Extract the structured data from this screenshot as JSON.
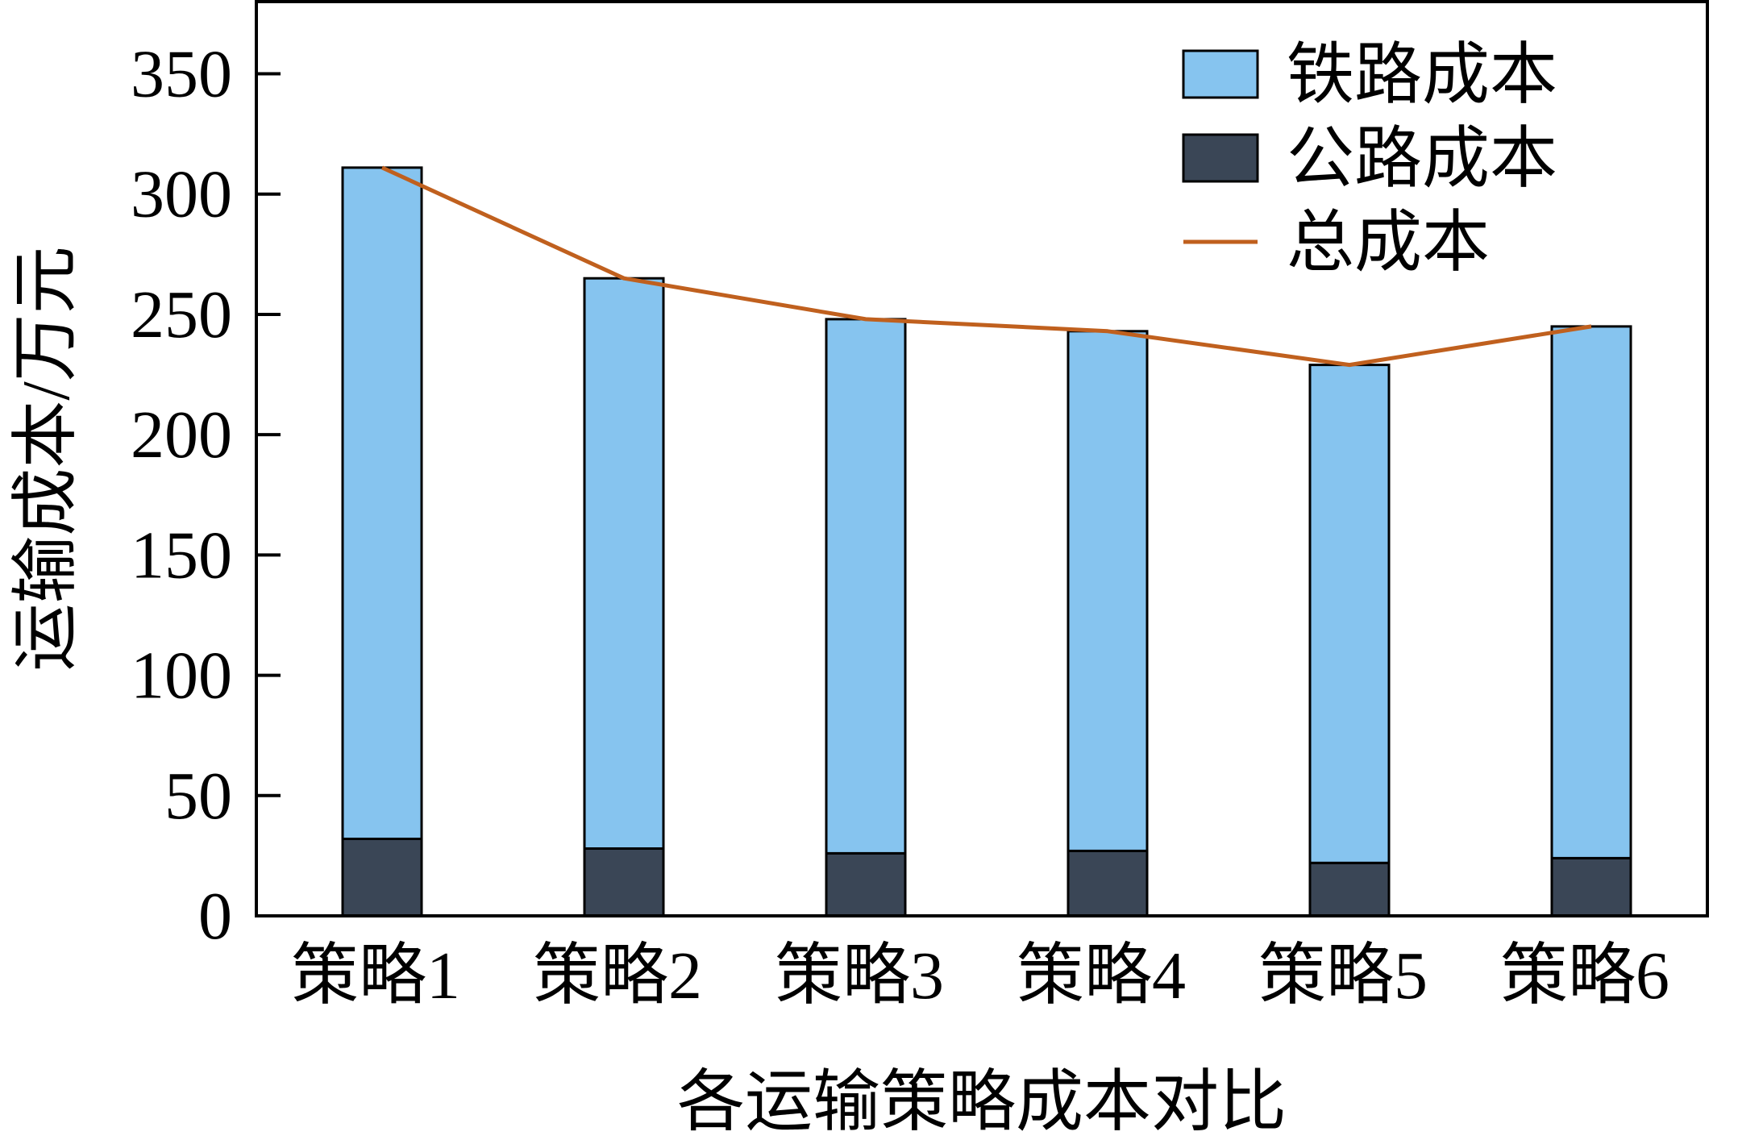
{
  "chart_data": {
    "type": "bar",
    "stacked": true,
    "title": "",
    "xlabel": "各运输策略成本对比",
    "ylabel": "运输成本/万元",
    "categories": [
      "策略1",
      "策略2",
      "策略3",
      "策略4",
      "策略5",
      "策略6"
    ],
    "series": [
      {
        "name": "公路成本",
        "type": "bar",
        "color": "#3a4656",
        "values": [
          32,
          28,
          26,
          27,
          22,
          24
        ]
      },
      {
        "name": "铁路成本",
        "type": "bar",
        "color": "#86c4ef",
        "values": [
          279,
          237,
          222,
          216,
          207,
          221
        ]
      },
      {
        "name": "总成本",
        "type": "line",
        "color": "#c0601e",
        "values": [
          311,
          265,
          248,
          243,
          229,
          245
        ]
      }
    ],
    "legend_order": [
      "铁路成本",
      "公路成本",
      "总成本"
    ],
    "ylim": [
      0,
      380
    ],
    "yticks": [
      0,
      50,
      100,
      150,
      200,
      250,
      300,
      350
    ],
    "legend_position": "top-right",
    "grid": false
  }
}
